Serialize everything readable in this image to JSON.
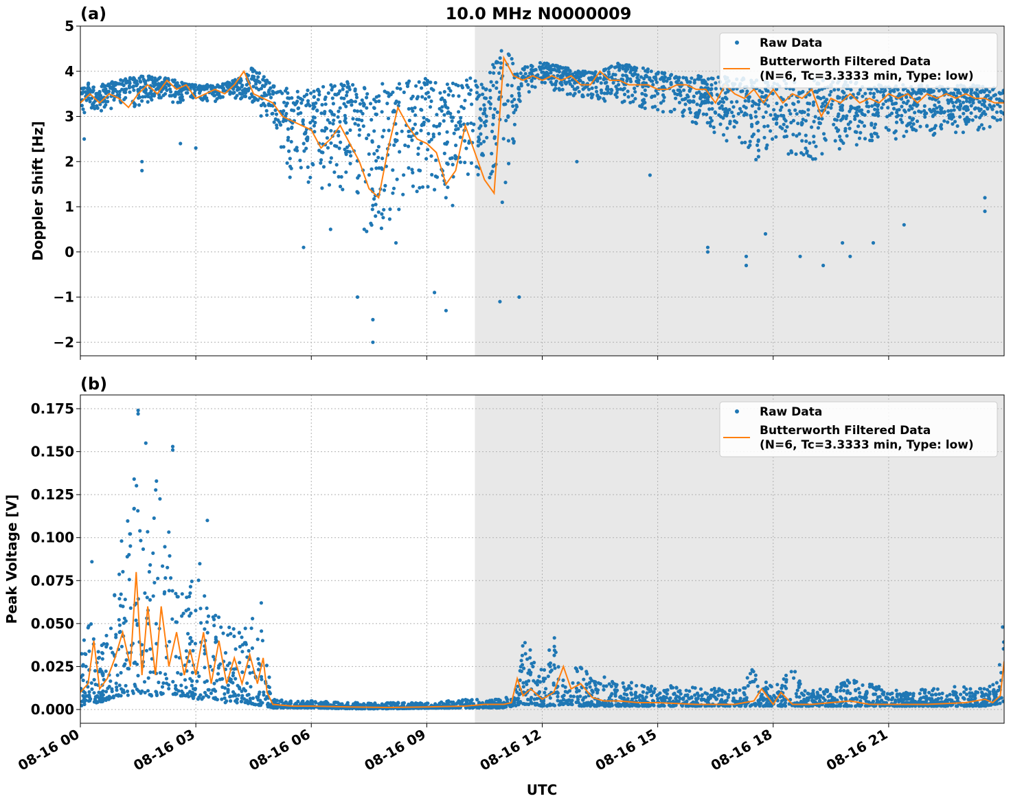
{
  "figure_title": "10.0 MHz N0000009",
  "x_axis_label": "UTC",
  "colors": {
    "raw": "#1f77b4",
    "filtered": "#ff7f0e",
    "shade": "#e8e8e8",
    "grid": "#b0b0b0"
  },
  "legend": {
    "raw_label": "Raw Data",
    "filtered_label_line1": "Butterworth Filtered Data",
    "filtered_label_line2": "(N=6, Tc=3.3333 min, Type: low)",
    "placement": "upper right"
  },
  "x_ticks": [
    "08-16 00",
    "08-16 03",
    "08-16 06",
    "08-16 09",
    "08-16 12",
    "08-16 15",
    "08-16 18",
    "08-16 21"
  ],
  "chart_data": [
    {
      "type": "scatter",
      "panel_label": "(a)",
      "title": "10.0 MHz N0000009",
      "xlabel": "UTC",
      "ylabel": "Doppler Shift [Hz]",
      "xlim_hours": [
        0,
        24
      ],
      "ylim": [
        -2.3,
        5.0
      ],
      "y_ticks": [
        "5",
        "4",
        "3",
        "2",
        "1",
        "0",
        "−1",
        "−2"
      ],
      "y_tick_values": [
        5,
        4,
        3,
        2,
        1,
        0,
        -1,
        -2
      ],
      "shaded_region_hours": [
        10.25,
        24
      ],
      "grid": true,
      "series": [
        {
          "name": "Raw Data",
          "kind": "scatter",
          "band_hours": [
            0,
            0.5,
            1,
            1.5,
            2,
            2.5,
            3,
            3.5,
            4,
            4.5,
            5,
            5.5,
            6,
            6.5,
            7,
            7.5,
            8,
            8.5,
            9,
            9.5,
            10,
            10.5,
            11,
            11.5,
            12,
            12.5,
            13,
            13.5,
            14,
            14.5,
            15,
            15.5,
            16,
            16.5,
            17,
            17.5,
            18,
            18.5,
            19,
            19.5,
            20,
            20.5,
            21,
            21.5,
            22,
            22.5,
            23,
            23.5,
            24
          ],
          "band_low": [
            3.0,
            3.1,
            3.2,
            3.2,
            3.3,
            3.3,
            3.3,
            3.3,
            3.4,
            3.2,
            2.5,
            1.5,
            1.2,
            1.4,
            0.8,
            0.2,
            0.5,
            1.0,
            1.0,
            0.8,
            1.2,
            1.6,
            0.5,
            3.5,
            3.6,
            3.5,
            3.4,
            3.3,
            3.3,
            3.2,
            3.1,
            3.0,
            2.8,
            2.5,
            2.2,
            2.0,
            2.2,
            2.0,
            1.8,
            2.0,
            2.2,
            2.3,
            2.4,
            2.5,
            2.5,
            2.6,
            2.6,
            2.7,
            2.8
          ],
          "band_high": [
            3.8,
            3.7,
            3.8,
            3.9,
            3.9,
            3.8,
            3.7,
            3.7,
            3.8,
            4.1,
            3.7,
            3.6,
            3.6,
            3.7,
            3.8,
            3.7,
            3.8,
            3.8,
            3.9,
            3.7,
            3.9,
            3.8,
            4.6,
            4.1,
            4.2,
            4.1,
            4.0,
            4.0,
            4.2,
            4.1,
            4.0,
            3.9,
            3.9,
            3.9,
            3.9,
            3.8,
            3.8,
            3.8,
            3.8,
            3.8,
            3.8,
            3.7,
            3.7,
            3.7,
            3.7,
            3.7,
            3.7,
            3.7,
            3.6
          ],
          "outliers": [
            [
              0.1,
              2.5
            ],
            [
              1.6,
              1.8
            ],
            [
              1.6,
              2.0
            ],
            [
              2.6,
              2.4
            ],
            [
              3.0,
              2.3
            ],
            [
              5.8,
              0.1
            ],
            [
              6.5,
              0.5
            ],
            [
              7.2,
              -1.0
            ],
            [
              7.6,
              -2.0
            ],
            [
              7.6,
              -1.5
            ],
            [
              8.2,
              0.2
            ],
            [
              9.2,
              -0.9
            ],
            [
              9.5,
              -1.3
            ],
            [
              10.9,
              -1.1
            ],
            [
              11.4,
              -1.0
            ],
            [
              12.9,
              2.0
            ],
            [
              14.8,
              1.7
            ],
            [
              17.3,
              -0.3
            ],
            [
              17.3,
              -0.1
            ],
            [
              17.8,
              0.4
            ],
            [
              18.7,
              -0.1
            ],
            [
              19.3,
              -0.3
            ],
            [
              19.8,
              0.2
            ],
            [
              20.0,
              -0.1
            ],
            [
              20.6,
              0.2
            ],
            [
              21.4,
              0.6
            ],
            [
              23.5,
              0.9
            ],
            [
              23.5,
              1.2
            ],
            [
              16.3,
              0.0
            ],
            [
              16.3,
              0.1
            ]
          ]
        },
        {
          "name": "Butterworth Filtered Data (N=6, Tc=3.3333 min, Type: low)",
          "kind": "line",
          "x_hours": [
            0,
            0.25,
            0.5,
            0.75,
            1,
            1.25,
            1.5,
            1.75,
            2,
            2.25,
            2.5,
            2.75,
            3,
            3.25,
            3.5,
            3.75,
            4,
            4.25,
            4.5,
            4.75,
            5,
            5.25,
            5.5,
            5.75,
            6,
            6.25,
            6.5,
            6.75,
            7,
            7.25,
            7.5,
            7.75,
            8,
            8.25,
            8.5,
            8.75,
            9,
            9.25,
            9.5,
            9.75,
            10,
            10.25,
            10.5,
            10.75,
            11,
            11.25,
            11.5,
            11.75,
            12,
            12.25,
            12.5,
            12.75,
            13,
            13.25,
            13.5,
            13.75,
            14,
            14.25,
            14.5,
            14.75,
            15,
            15.25,
            15.5,
            15.75,
            16,
            16.25,
            16.5,
            16.75,
            17,
            17.25,
            17.5,
            17.75,
            18,
            18.25,
            18.5,
            18.75,
            19,
            19.25,
            19.5,
            19.75,
            20,
            20.25,
            20.5,
            20.75,
            21,
            21.25,
            21.5,
            21.75,
            22,
            22.25,
            22.5,
            22.75,
            23,
            23.25,
            23.5,
            23.75,
            24
          ],
          "y": [
            3.3,
            3.5,
            3.3,
            3.5,
            3.4,
            3.2,
            3.5,
            3.7,
            3.5,
            3.8,
            3.6,
            3.7,
            3.4,
            3.5,
            3.6,
            3.5,
            3.7,
            4.0,
            3.5,
            3.4,
            3.3,
            3.0,
            2.9,
            2.8,
            2.7,
            2.3,
            2.5,
            2.8,
            2.4,
            2.0,
            1.4,
            1.2,
            2.3,
            3.2,
            2.8,
            2.5,
            2.4,
            2.2,
            1.5,
            1.8,
            2.8,
            2.2,
            1.6,
            1.3,
            4.3,
            3.9,
            3.8,
            3.9,
            3.8,
            3.9,
            3.8,
            3.9,
            3.7,
            3.7,
            4.0,
            3.8,
            3.8,
            3.7,
            3.7,
            3.7,
            3.6,
            3.6,
            3.7,
            3.7,
            3.6,
            3.6,
            3.3,
            3.7,
            3.5,
            3.4,
            3.6,
            3.3,
            3.6,
            3.3,
            3.5,
            3.4,
            3.6,
            3.0,
            3.4,
            3.3,
            3.5,
            3.3,
            3.4,
            3.3,
            3.5,
            3.4,
            3.5,
            3.3,
            3.5,
            3.4,
            3.5,
            3.4,
            3.5,
            3.4,
            3.4,
            3.3,
            3.3
          ]
        }
      ]
    },
    {
      "type": "scatter",
      "panel_label": "(b)",
      "title": "",
      "xlabel": "UTC",
      "ylabel": "Peak Voltage [V]",
      "xlim_hours": [
        0,
        24
      ],
      "ylim": [
        -0.008,
        0.183
      ],
      "y_ticks": [
        "0.175",
        "0.150",
        "0.125",
        "0.100",
        "0.075",
        "0.050",
        "0.025",
        "0.000"
      ],
      "y_tick_values": [
        0.175,
        0.15,
        0.125,
        0.1,
        0.075,
        0.05,
        0.025,
        0.0
      ],
      "shaded_region_hours": [
        10.25,
        24
      ],
      "grid": true,
      "series": [
        {
          "name": "Raw Data",
          "kind": "scatter",
          "band_hours": [
            0,
            0.25,
            0.5,
            0.75,
            1,
            1.25,
            1.5,
            1.75,
            2,
            2.25,
            2.5,
            2.75,
            3,
            3.25,
            3.5,
            3.75,
            4,
            4.25,
            4.5,
            4.75,
            5,
            5.5,
            6,
            7,
            8,
            9,
            10,
            10.5,
            11,
            11.25,
            11.5,
            11.75,
            12,
            12.25,
            12.5,
            12.75,
            13,
            13.5,
            14,
            15,
            16,
            17,
            17.5,
            18,
            18.5,
            19,
            19.5,
            20,
            21,
            22,
            23,
            23.5,
            23.75,
            24
          ],
          "band_low": [
            0.002,
            0.004,
            0.004,
            0.006,
            0.008,
            0.008,
            0.01,
            0.008,
            0.008,
            0.01,
            0.008,
            0.008,
            0.006,
            0.006,
            0.006,
            0.004,
            0.004,
            0.004,
            0.003,
            0.002,
            0.001,
            0.001,
            0.001,
            0.0005,
            0.0005,
            0.0008,
            0.001,
            0.001,
            0.001,
            0.002,
            0.003,
            0.003,
            0.002,
            0.002,
            0.003,
            0.003,
            0.002,
            0.002,
            0.002,
            0.002,
            0.002,
            0.002,
            0.002,
            0.002,
            0.002,
            0.002,
            0.002,
            0.002,
            0.002,
            0.002,
            0.002,
            0.002,
            0.003,
            0.004
          ],
          "band_high": [
            0.03,
            0.06,
            0.035,
            0.05,
            0.09,
            0.12,
            0.15,
            0.11,
            0.15,
            0.11,
            0.09,
            0.07,
            0.1,
            0.07,
            0.06,
            0.05,
            0.05,
            0.045,
            0.06,
            0.045,
            0.006,
            0.005,
            0.005,
            0.004,
            0.004,
            0.004,
            0.006,
            0.006,
            0.006,
            0.01,
            0.04,
            0.035,
            0.025,
            0.045,
            0.04,
            0.03,
            0.025,
            0.02,
            0.016,
            0.015,
            0.013,
            0.012,
            0.025,
            0.013,
            0.025,
            0.012,
            0.012,
            0.018,
            0.012,
            0.012,
            0.014,
            0.012,
            0.02,
            0.055
          ],
          "outliers": [
            [
              1.5,
              0.174
            ],
            [
              1.5,
              0.172
            ],
            [
              1.7,
              0.155
            ],
            [
              2.4,
              0.153
            ],
            [
              2.4,
              0.151
            ],
            [
              3.3,
              0.11
            ],
            [
              0.3,
              0.086
            ],
            [
              4.7,
              0.062
            ]
          ]
        },
        {
          "name": "Butterworth Filtered Data (N=6, Tc=3.3333 min, Type: low)",
          "kind": "line",
          "x_hours": [
            0,
            0.2,
            0.35,
            0.5,
            0.7,
            0.9,
            1.1,
            1.3,
            1.45,
            1.6,
            1.75,
            1.95,
            2.1,
            2.3,
            2.5,
            2.7,
            2.85,
            3.0,
            3.2,
            3.4,
            3.6,
            3.8,
            4.0,
            4.2,
            4.4,
            4.6,
            4.75,
            4.85,
            5.0,
            5.5,
            6,
            7,
            8,
            9,
            10,
            10.5,
            11,
            11.2,
            11.35,
            11.5,
            11.7,
            12,
            12.3,
            12.55,
            12.75,
            13,
            13.3,
            13.6,
            14,
            14.5,
            15,
            16,
            17,
            17.5,
            17.7,
            18,
            18.2,
            18.5,
            19,
            19.5,
            20,
            20.5,
            21,
            22,
            23,
            23.5,
            23.7,
            23.9,
            24
          ],
          "y": [
            0.01,
            0.015,
            0.04,
            0.012,
            0.018,
            0.03,
            0.045,
            0.025,
            0.08,
            0.02,
            0.06,
            0.02,
            0.06,
            0.025,
            0.045,
            0.02,
            0.035,
            0.02,
            0.045,
            0.015,
            0.04,
            0.015,
            0.03,
            0.015,
            0.032,
            0.015,
            0.03,
            0.01,
            0.003,
            0.002,
            0.002,
            0.0015,
            0.0012,
            0.0015,
            0.002,
            0.003,
            0.003,
            0.004,
            0.018,
            0.008,
            0.012,
            0.006,
            0.01,
            0.025,
            0.012,
            0.015,
            0.007,
            0.005,
            0.005,
            0.004,
            0.004,
            0.003,
            0.003,
            0.005,
            0.012,
            0.003,
            0.01,
            0.003,
            0.003,
            0.004,
            0.005,
            0.003,
            0.003,
            0.003,
            0.004,
            0.006,
            0.004,
            0.008,
            0.028
          ]
        }
      ]
    }
  ]
}
